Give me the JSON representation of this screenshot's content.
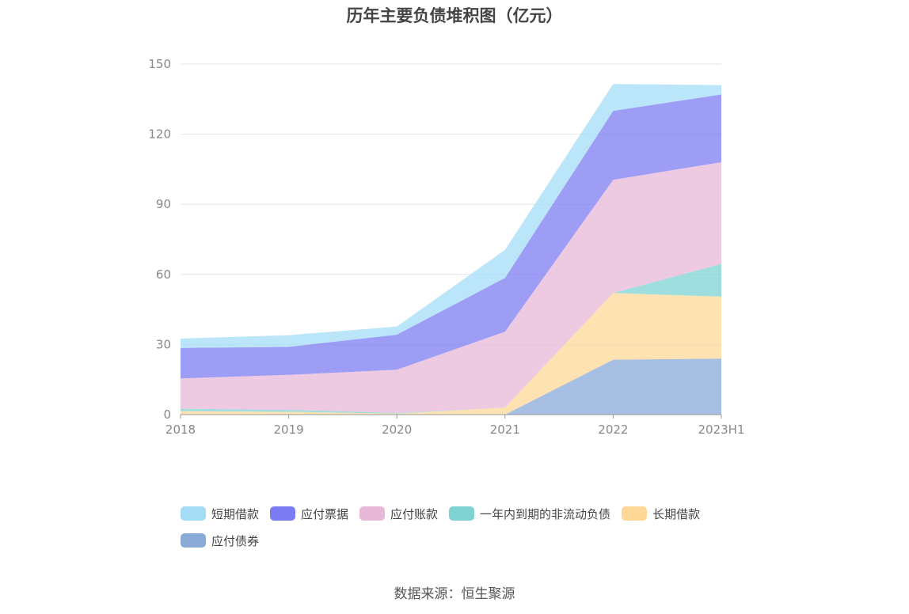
{
  "chart_data": {
    "type": "area",
    "stacked": true,
    "title": "历年主要负债堆积图（亿元）",
    "categories": [
      "2018",
      "2019",
      "2020",
      "2021",
      "2022",
      "2023H1"
    ],
    "ylim": [
      0,
      150
    ],
    "yticks": [
      0,
      30,
      60,
      90,
      120,
      150
    ],
    "grid": true,
    "legend_position": "bottom",
    "series": [
      {
        "name": "应付债券",
        "color": "#8aaad8",
        "values": [
          0,
          0,
          0,
          0,
          23.5,
          24
        ]
      },
      {
        "name": "长期借款",
        "color": "#ffd898",
        "values": [
          1.5,
          1.2,
          0.4,
          3,
          28.5,
          26.5
        ]
      },
      {
        "name": "一年内到期的非流动负债",
        "color": "#7fd3d3",
        "values": [
          1,
          0.8,
          0.3,
          0,
          0,
          14
        ]
      },
      {
        "name": "应付账款",
        "color": "#e8b8d8",
        "values": [
          13,
          15,
          18.5,
          32.5,
          48.5,
          43.5
        ]
      },
      {
        "name": "应付票据",
        "color": "#7c7cf2",
        "values": [
          13,
          12,
          15,
          23,
          29.5,
          29
        ]
      },
      {
        "name": "短期借款",
        "color": "#a4dcf6",
        "values": [
          4,
          5,
          3.5,
          12,
          11.5,
          4
        ]
      }
    ],
    "legend_order": [
      "短期借款",
      "应付票据",
      "应付账款",
      "一年内到期的非流动负债",
      "长期借款",
      "应付债券"
    ],
    "source": "数据来源：恒生聚源"
  }
}
